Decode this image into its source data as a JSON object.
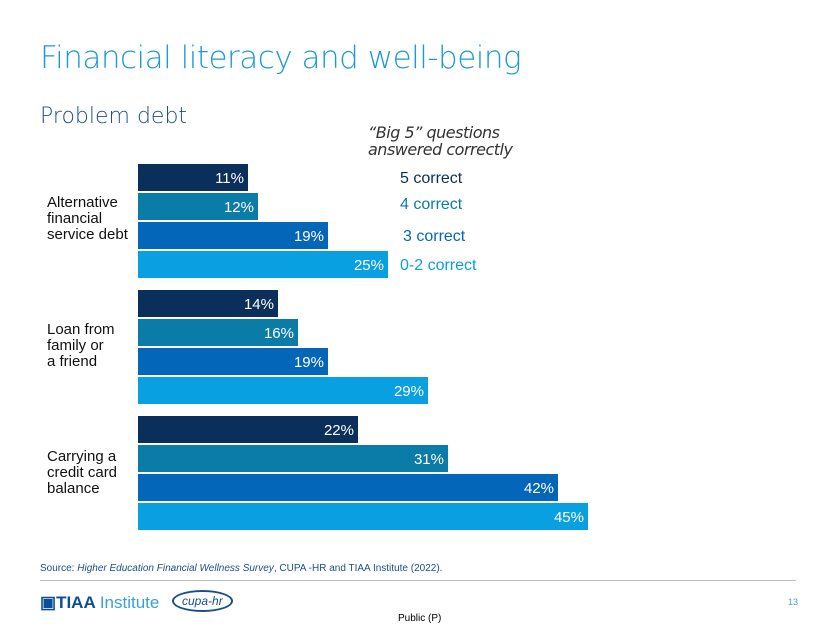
{
  "title": "Financial literacy and well-being",
  "subtitle": "Problem debt",
  "chart_data": {
    "type": "bar",
    "orientation": "horizontal",
    "legend_title": "“Big 5” questions answered correctly",
    "legend_placement": "top-right",
    "categories": [
      "Alternative financial service debt",
      "Loan from family or a friend",
      "Carrying a credit card balance"
    ],
    "category_lines": [
      [
        "Alternative",
        "financial",
        "service debt"
      ],
      [
        "Loan from",
        "family or",
        "a friend"
      ],
      [
        "Carrying a",
        "credit card",
        "balance"
      ]
    ],
    "series": [
      {
        "name": "5 correct",
        "color": "#0b2f5b",
        "values": [
          11,
          14,
          22
        ]
      },
      {
        "name": "4 correct",
        "color": "#0b7ba8",
        "values": [
          12,
          16,
          31
        ]
      },
      {
        "name": "3 correct",
        "color": "#0466b8",
        "values": [
          19,
          19,
          42
        ]
      },
      {
        "name": "0-2 correct",
        "color": "#08a0e0",
        "values": [
          25,
          29,
          45
        ]
      }
    ],
    "value_suffix": "%",
    "xlim": [
      0,
      50
    ],
    "grid": false
  },
  "source": {
    "prefix": "Source: ",
    "italic": "Higher Education Financial Wellness Survey",
    "rest": ", CUPA    -HR and TIAA Institute (2022)."
  },
  "footer": {
    "logo_tiaa": "TIAA",
    "logo_institute": "Institute",
    "logo_cupa": "cupa-hr",
    "page": "13",
    "classification": "Public (P)"
  }
}
